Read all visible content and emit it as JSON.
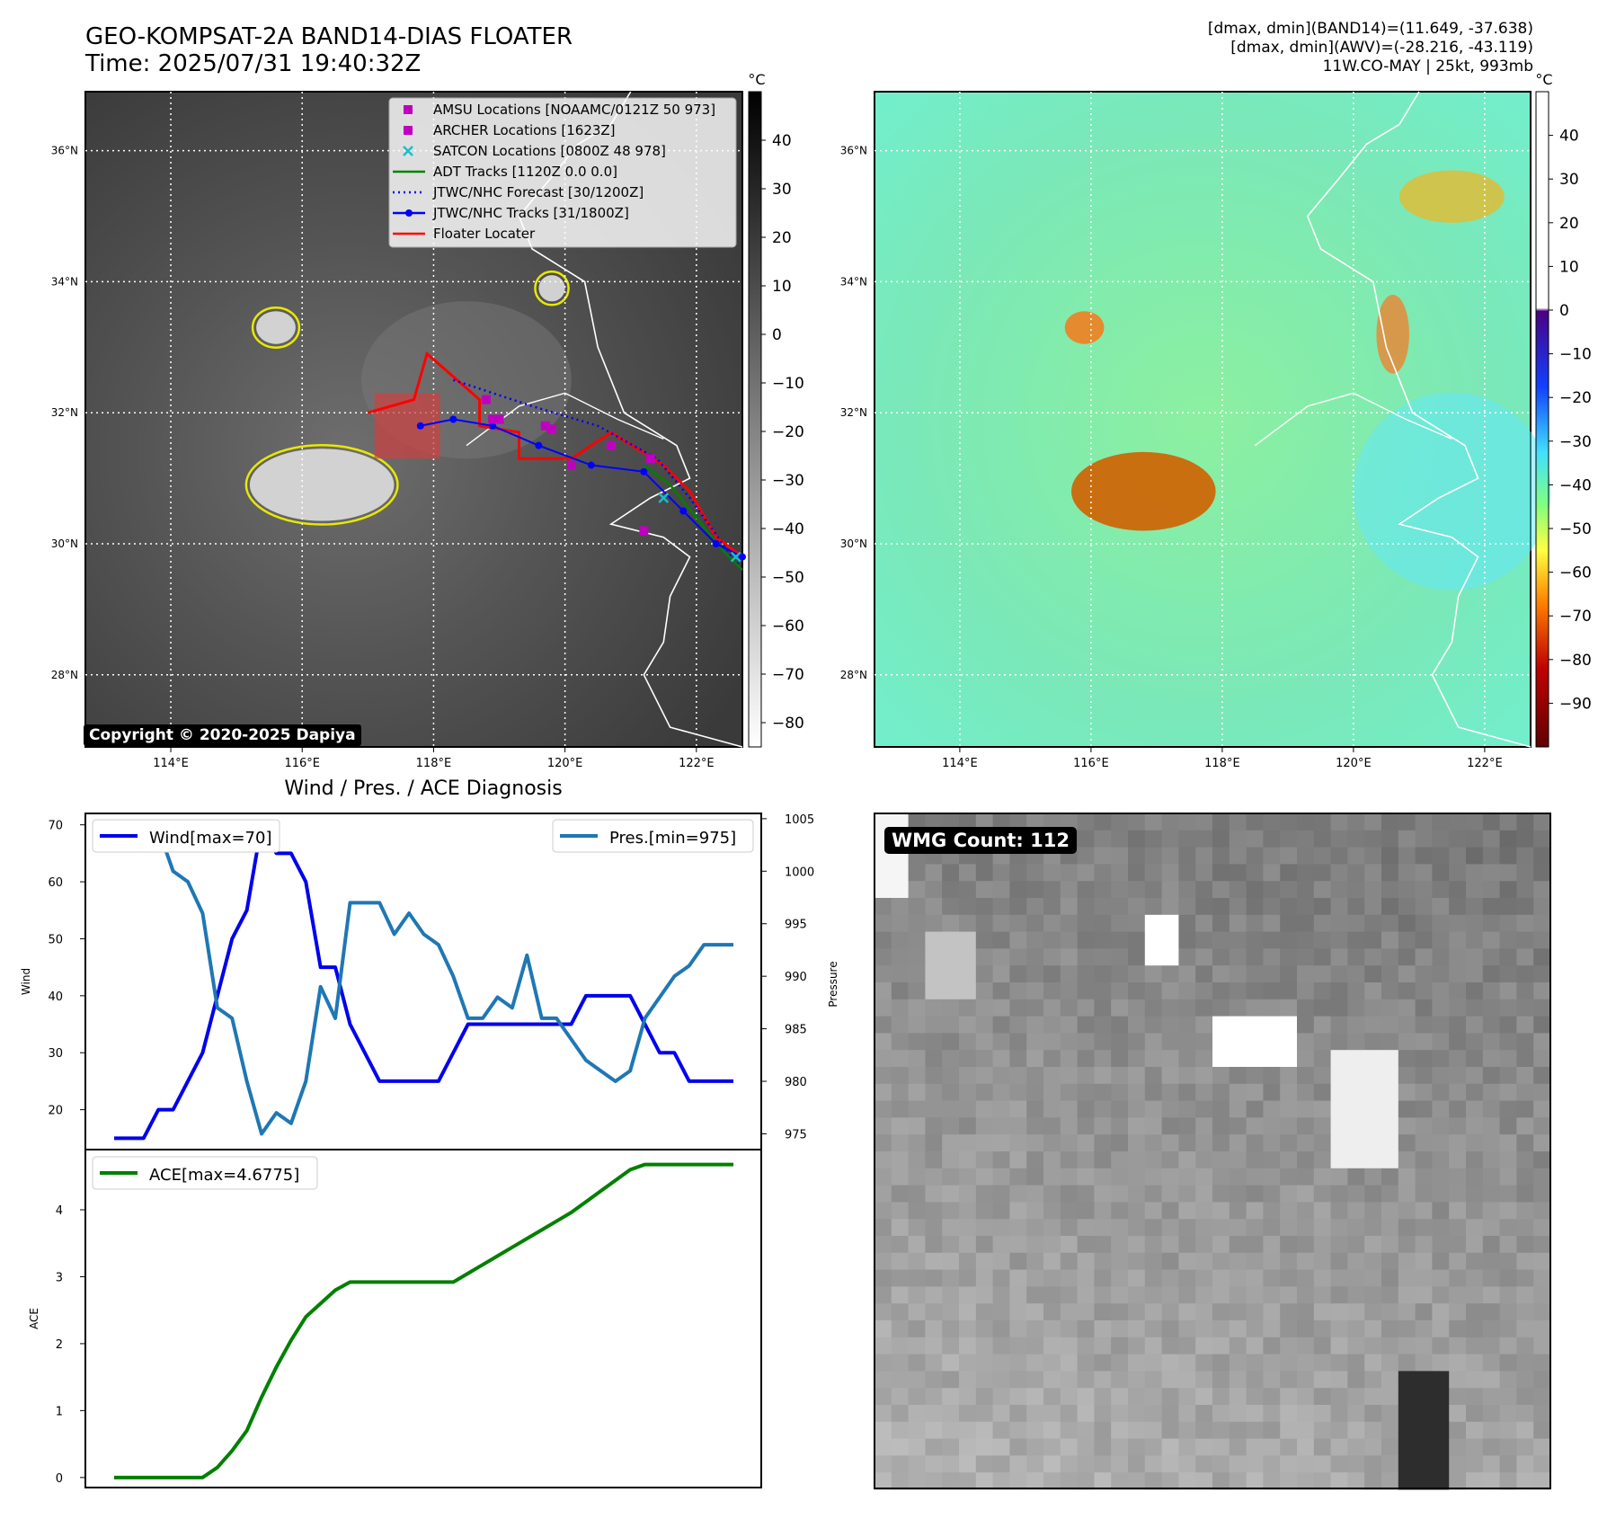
{
  "header": {
    "title": "GEO-KOMPSAT-2A BAND14-DIAS FLOATER",
    "time": "Time: 2025/07/31 19:40:32Z",
    "info_lines": [
      "[dmax, dmin](BAND14)=(11.649, -37.638)",
      "[dmax, dmin](AWV)=(-28.216, -43.119)",
      "11W.CO-MAY | 25kt, 993mb"
    ]
  },
  "copyright": "Copyright © 2020-2025 Dapiya",
  "wmg_label": "WMG Count: 112",
  "colors": {
    "amsu": "#c000c0",
    "archer": "#c000c0",
    "satcon": "#17becf",
    "adt": "#008000",
    "forecast": "#0000ff",
    "tracks": "#0000ff",
    "floater": "#ff0000",
    "pressure": "#1f77b4",
    "ace": "#008000",
    "wind": "#0000ee"
  },
  "map_axes": {
    "lat_ticks": [
      "36°N",
      "34°N",
      "32°N",
      "30°N",
      "28°N"
    ],
    "lat_values": [
      36,
      34,
      32,
      30,
      28
    ],
    "lon_ticks": [
      "114°E",
      "116°E",
      "118°E",
      "120°E",
      "122°E"
    ],
    "lon_values": [
      114,
      116,
      118,
      120,
      122
    ],
    "lon_range": [
      112.7,
      122.7
    ],
    "lat_range": [
      26.9,
      36.9
    ]
  },
  "ir_colorbar": {
    "unit": "°C",
    "ticks": [
      "40",
      "30",
      "20",
      "10",
      "0",
      "−10",
      "−20",
      "−30",
      "−40",
      "−50",
      "−60",
      "−70",
      "−80"
    ],
    "values": [
      40,
      30,
      20,
      10,
      0,
      -10,
      -20,
      -30,
      -40,
      -50,
      -60,
      -70,
      -80
    ],
    "range": [
      -85,
      50
    ]
  },
  "awv_colorbar": {
    "unit": "°C",
    "ticks": [
      "40",
      "30",
      "20",
      "10",
      "0",
      "−10",
      "−20",
      "−30",
      "−40",
      "−50",
      "−60",
      "−70",
      "−80",
      "−90"
    ],
    "values": [
      40,
      30,
      20,
      10,
      0,
      -10,
      -20,
      -30,
      -40,
      -50,
      -60,
      -70,
      -80,
      -90
    ],
    "range": [
      -100,
      50
    ]
  },
  "legend": [
    {
      "label": "AMSU Locations [NOAAMC/0121Z 50 973]",
      "marker": "square",
      "color": "#c000c0"
    },
    {
      "label": "ARCHER Locations [1623Z]",
      "marker": "square",
      "color": "#c000c0"
    },
    {
      "label": "SATCON Locations [0800Z 48 978]",
      "marker": "x",
      "color": "#17becf"
    },
    {
      "label": "ADT Tracks [1120Z 0.0 0.0]",
      "marker": "line",
      "color": "#008000"
    },
    {
      "label": "JTWC/NHC Forecast [30/1200Z]",
      "marker": "dotted",
      "color": "#0000ff"
    },
    {
      "label": "JTWC/NHC Tracks [31/1800Z]",
      "marker": "line-dot",
      "color": "#0000ff"
    },
    {
      "label": "Floater Locater",
      "marker": "line",
      "color": "#ff0000"
    }
  ],
  "tracks": {
    "jtwc": [
      [
        117.8,
        31.8
      ],
      [
        118.3,
        31.9
      ],
      [
        118.9,
        31.8
      ],
      [
        119.6,
        31.5
      ],
      [
        120.4,
        31.2
      ],
      [
        121.2,
        31.1
      ],
      [
        121.8,
        30.5
      ],
      [
        122.3,
        30.0
      ],
      [
        122.7,
        29.8
      ]
    ],
    "forecast": [
      [
        118.3,
        32.5
      ],
      [
        119.5,
        32.1
      ],
      [
        120.5,
        31.8
      ],
      [
        121.4,
        31.3
      ],
      [
        121.9,
        30.7
      ],
      [
        122.4,
        30.0
      ],
      [
        122.7,
        29.6
      ]
    ],
    "adt": [
      [
        121.2,
        31.2
      ],
      [
        121.6,
        30.9
      ],
      [
        122.0,
        30.4
      ],
      [
        122.4,
        29.9
      ],
      [
        122.7,
        29.6
      ]
    ],
    "floater": [
      [
        117.0,
        32.0
      ],
      [
        117.7,
        32.2
      ],
      [
        117.9,
        32.9
      ],
      [
        118.7,
        32.2
      ],
      [
        118.7,
        31.8
      ],
      [
        119.3,
        31.7
      ],
      [
        119.3,
        31.3
      ],
      [
        120.1,
        31.3
      ],
      [
        120.7,
        31.7
      ],
      [
        121.5,
        31.2
      ],
      [
        121.9,
        30.8
      ],
      [
        122.3,
        30.1
      ],
      [
        122.7,
        29.8
      ]
    ],
    "amsu": [
      [
        118.8,
        32.2
      ],
      [
        119.7,
        31.8
      ],
      [
        120.1,
        31.2
      ],
      [
        120.7,
        31.5
      ],
      [
        121.3,
        31.3
      ],
      [
        121.2,
        30.2
      ],
      [
        119.0,
        31.9
      ]
    ],
    "archer": [
      [
        118.9,
        31.9
      ],
      [
        119.8,
        31.75
      ]
    ],
    "satcon": [
      [
        121.5,
        30.7
      ],
      [
        122.6,
        29.8
      ]
    ],
    "floater_box": {
      "lon": [
        117.1,
        118.1
      ],
      "lat": [
        31.3,
        32.3
      ]
    }
  },
  "chart_data": [
    {
      "type": "line",
      "title": "Wind / Pres. / ACE Diagnosis",
      "ylabel": "Wind",
      "y2label": "Pressure",
      "ylim": [
        13,
        72
      ],
      "y2lim": [
        973.5,
        1005.5
      ],
      "yticks": [
        20,
        30,
        40,
        50,
        60,
        70
      ],
      "y2ticks": [
        975,
        980,
        985,
        990,
        995,
        1000,
        1005
      ],
      "x": [
        0,
        1,
        2,
        3,
        4,
        5,
        6,
        7,
        8,
        9,
        10,
        11,
        12,
        13,
        14,
        15,
        16,
        17,
        18,
        19,
        20,
        21,
        22,
        23,
        24,
        25,
        26,
        27,
        28,
        29,
        30,
        31,
        32,
        33,
        34,
        35,
        36,
        37,
        38,
        39,
        40,
        41,
        42
      ],
      "series": [
        {
          "name": "Wind[max=70]",
          "axis": "left",
          "values": [
            15,
            15,
            15,
            20,
            20,
            25,
            30,
            40,
            50,
            55,
            70,
            65,
            65,
            60,
            45,
            45,
            35,
            30,
            25,
            25,
            25,
            25,
            25,
            30,
            35,
            35,
            35,
            35,
            35,
            35,
            35,
            35,
            40,
            40,
            40,
            40,
            35,
            30,
            30,
            25,
            25,
            25,
            25
          ]
        },
        {
          "name": "Pres.[min=975]",
          "axis": "right",
          "values": [
            1004,
            1004,
            1004,
            1004,
            1000,
            999,
            996,
            987,
            986,
            980,
            975,
            977,
            976,
            980,
            989,
            986,
            997,
            997,
            997,
            994,
            996,
            994,
            993,
            990,
            986,
            986,
            988,
            987,
            992,
            986,
            986,
            984,
            982,
            981,
            980,
            981,
            986,
            988,
            990,
            991,
            993,
            993,
            993
          ]
        }
      ]
    },
    {
      "type": "line",
      "ylabel": "ACE",
      "ylim": [
        -0.15,
        4.9
      ],
      "yticks": [
        0,
        1,
        2,
        3,
        4
      ],
      "x": [
        0,
        1,
        2,
        3,
        4,
        5,
        6,
        7,
        8,
        9,
        10,
        11,
        12,
        13,
        14,
        15,
        16,
        17,
        18,
        19,
        20,
        21,
        22,
        23,
        24,
        25,
        26,
        27,
        28,
        29,
        30,
        31,
        32,
        33,
        34,
        35,
        36,
        37,
        38,
        39,
        40,
        41,
        42
      ],
      "series": [
        {
          "name": "ACE[max=4.6775]",
          "values": [
            0,
            0,
            0,
            0,
            0,
            0,
            0,
            0.15,
            0.4,
            0.7,
            1.2,
            1.65,
            2.05,
            2.4,
            2.6,
            2.8,
            2.92,
            2.92,
            2.92,
            2.92,
            2.92,
            2.92,
            2.92,
            2.92,
            3.05,
            3.18,
            3.31,
            3.44,
            3.57,
            3.7,
            3.83,
            3.96,
            4.12,
            4.28,
            4.44,
            4.6,
            4.6775,
            4.6775,
            4.6775,
            4.6775,
            4.6775,
            4.6775,
            4.6775
          ]
        }
      ]
    }
  ]
}
